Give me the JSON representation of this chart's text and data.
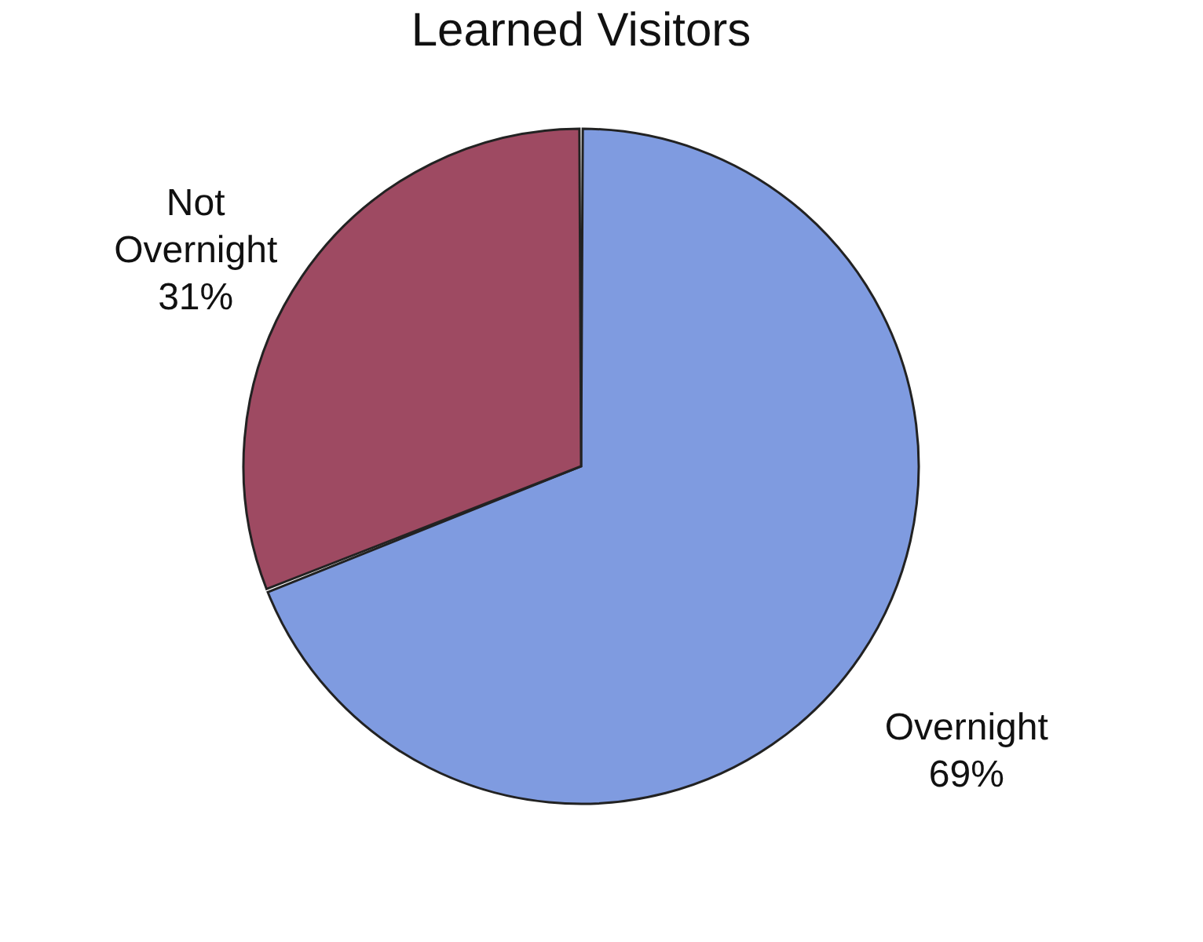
{
  "chart_data": {
    "type": "pie",
    "title": "Learned Visitors",
    "categories": [
      "Overnight",
      "Not Overnight"
    ],
    "values": [
      69,
      31
    ],
    "colors": [
      "#7f9be0",
      "#9e4a62"
    ],
    "value_labels": [
      "69%",
      "31%"
    ],
    "legend": false
  }
}
